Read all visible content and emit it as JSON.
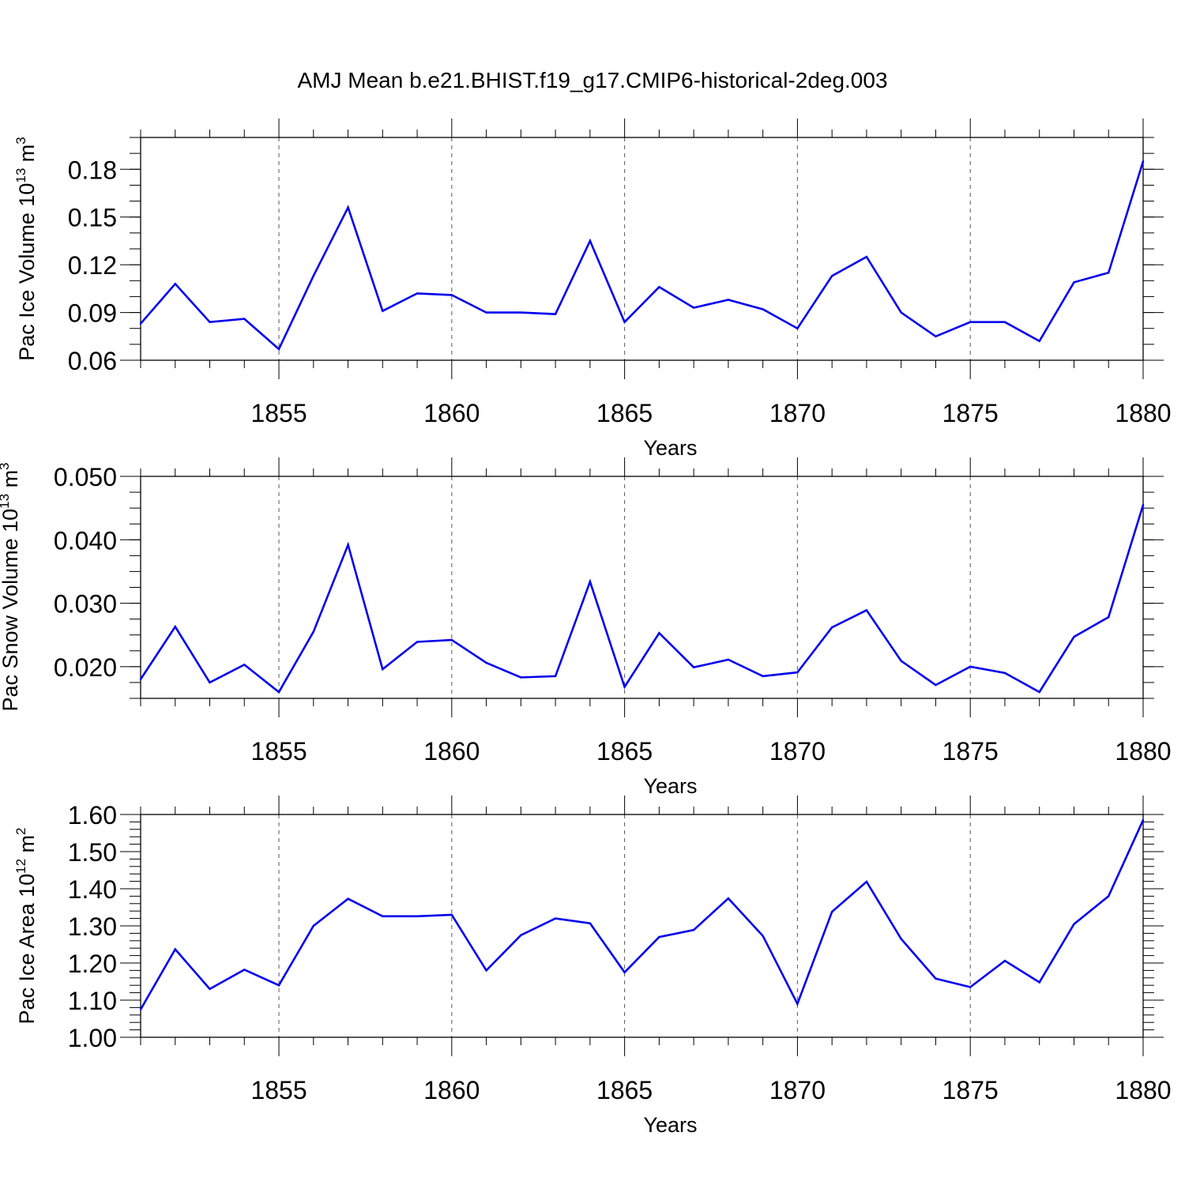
{
  "chart_data": {
    "type": "line",
    "title": "AMJ Mean b.e21.BHIST.f19_g17.CMIP6-historical-2deg.003",
    "x": [
      1851,
      1852,
      1853,
      1854,
      1855,
      1856,
      1857,
      1858,
      1859,
      1860,
      1861,
      1862,
      1863,
      1864,
      1865,
      1866,
      1867,
      1868,
      1869,
      1870,
      1871,
      1872,
      1873,
      1874,
      1875,
      1876,
      1877,
      1878,
      1879,
      1880
    ],
    "xlim": [
      1851,
      1880
    ],
    "xticks": [
      1855,
      1860,
      1865,
      1870,
      1875,
      1880
    ],
    "xtick_labels": [
      "1855",
      "1860",
      "1865",
      "1870",
      "1875",
      "1880"
    ],
    "grid": "vertical dashed lines at major x ticks",
    "line_color": "#0000ee",
    "panels": [
      {
        "ylabel": "Pac Ice Volume 10",
        "ylabel_exp": "13",
        "ylabel_unit": " m",
        "ylabel_unit_exp": "3",
        "xlabel": "Years",
        "ylim": [
          0.06,
          0.2
        ],
        "yticks": [
          0.06,
          0.09,
          0.12,
          0.15,
          0.18
        ],
        "ytick_labels": [
          "0.06",
          "0.09",
          "0.12",
          "0.15",
          "0.18"
        ],
        "y_minor_step": 0.01,
        "values": [
          0.083,
          0.108,
          0.084,
          0.086,
          0.067,
          0.113,
          0.156,
          0.091,
          0.102,
          0.101,
          0.09,
          0.09,
          0.089,
          0.135,
          0.084,
          0.106,
          0.093,
          0.098,
          0.092,
          0.08,
          0.113,
          0.125,
          0.09,
          0.075,
          0.084,
          0.084,
          0.072,
          0.109,
          0.115,
          0.185
        ]
      },
      {
        "ylabel": "Pac Snow Volume 10",
        "ylabel_exp": "13",
        "ylabel_unit": " m",
        "ylabel_unit_exp": "3",
        "xlabel": "Years",
        "ylim": [
          0.015,
          0.05
        ],
        "yticks": [
          0.02,
          0.03,
          0.04,
          0.05
        ],
        "ytick_labels": [
          "0.020",
          "0.030",
          "0.040",
          "0.050"
        ],
        "y_minor_step": 0.0025,
        "values": [
          0.018,
          0.0263,
          0.0175,
          0.0203,
          0.016,
          0.0255,
          0.0392,
          0.0196,
          0.0239,
          0.0242,
          0.0206,
          0.0183,
          0.0185,
          0.0334,
          0.0168,
          0.0253,
          0.0199,
          0.0211,
          0.0185,
          0.0191,
          0.0262,
          0.0289,
          0.0209,
          0.0171,
          0.02,
          0.019,
          0.016,
          0.0247,
          0.0278,
          0.0455
        ]
      },
      {
        "ylabel": "Pac Ice Area 10",
        "ylabel_exp": "12",
        "ylabel_unit": " m",
        "ylabel_unit_exp": "2",
        "xlabel": "Years",
        "ylim": [
          1.0,
          1.6
        ],
        "yticks": [
          1.0,
          1.1,
          1.2,
          1.3,
          1.4,
          1.5,
          1.6
        ],
        "ytick_labels": [
          "1.00",
          "1.10",
          "1.20",
          "1.30",
          "1.40",
          "1.50",
          "1.60"
        ],
        "y_minor_step": 0.02,
        "values": [
          1.075,
          1.237,
          1.13,
          1.182,
          1.14,
          1.3,
          1.373,
          1.326,
          1.326,
          1.33,
          1.18,
          1.275,
          1.32,
          1.307,
          1.175,
          1.27,
          1.289,
          1.374,
          1.273,
          1.09,
          1.338,
          1.419,
          1.265,
          1.158,
          1.135,
          1.206,
          1.148,
          1.305,
          1.38,
          1.585
        ]
      }
    ]
  }
}
